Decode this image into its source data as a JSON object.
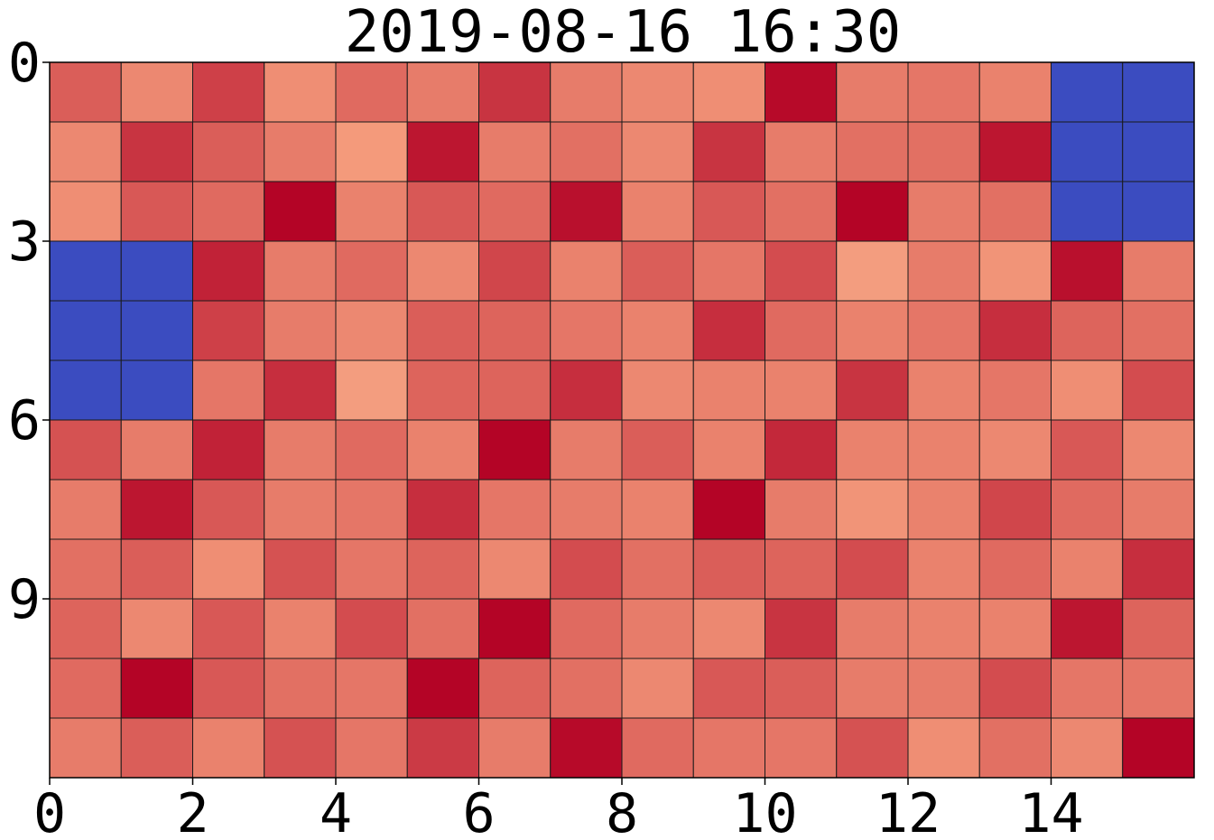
{
  "chart_data": {
    "type": "heatmap",
    "title": "2019-08-16 16:30",
    "xlabel": "",
    "ylabel": "",
    "xlim": [
      0,
      16
    ],
    "ylim": [
      12,
      0
    ],
    "x_ticks": [
      0,
      2,
      4,
      6,
      8,
      10,
      12,
      14
    ],
    "y_ticks": [
      0,
      3,
      6,
      9
    ],
    "x_tick_labels": [
      "0",
      "2",
      "4",
      "6",
      "8",
      "10",
      "12",
      "14"
    ],
    "y_tick_labels": [
      "0",
      "3",
      "6",
      "9"
    ],
    "colormap": "coolwarm",
    "color_range": [
      0,
      1
    ],
    "colors": {
      "low": "#3b4cc0",
      "high": "#b40426",
      "grid": "#1a1a1a",
      "background": "#ffffff"
    },
    "rows": 12,
    "cols": 16,
    "values": [
      [
        0.85,
        0.78,
        0.9,
        0.77,
        0.83,
        0.8,
        0.92,
        0.8,
        0.78,
        0.77,
        0.99,
        0.8,
        0.81,
        0.79,
        0.0,
        0.0
      ],
      [
        0.78,
        0.92,
        0.85,
        0.8,
        0.75,
        0.97,
        0.8,
        0.82,
        0.78,
        0.92,
        0.8,
        0.82,
        0.82,
        0.97,
        0.0,
        0.0
      ],
      [
        0.77,
        0.86,
        0.83,
        1.0,
        0.79,
        0.86,
        0.83,
        0.98,
        0.79,
        0.86,
        0.82,
        1.0,
        0.8,
        0.82,
        0.0,
        0.0
      ],
      [
        0.0,
        0.0,
        0.95,
        0.8,
        0.83,
        0.78,
        0.89,
        0.79,
        0.85,
        0.81,
        0.88,
        0.74,
        0.8,
        0.76,
        0.98,
        0.8
      ],
      [
        0.0,
        0.0,
        0.9,
        0.8,
        0.78,
        0.85,
        0.84,
        0.81,
        0.79,
        0.93,
        0.83,
        0.79,
        0.81,
        0.93,
        0.84,
        0.82
      ],
      [
        0.0,
        0.0,
        0.81,
        0.93,
        0.74,
        0.84,
        0.84,
        0.93,
        0.78,
        0.79,
        0.79,
        0.92,
        0.79,
        0.81,
        0.77,
        0.88
      ],
      [
        0.87,
        0.8,
        0.95,
        0.8,
        0.83,
        0.79,
        1.0,
        0.8,
        0.85,
        0.79,
        0.94,
        0.79,
        0.79,
        0.78,
        0.86,
        0.78
      ],
      [
        0.8,
        0.97,
        0.86,
        0.8,
        0.81,
        0.93,
        0.81,
        0.8,
        0.79,
        1.0,
        0.8,
        0.76,
        0.79,
        0.89,
        0.83,
        0.8
      ],
      [
        0.82,
        0.85,
        0.77,
        0.87,
        0.81,
        0.84,
        0.78,
        0.88,
        0.82,
        0.85,
        0.84,
        0.88,
        0.79,
        0.83,
        0.79,
        0.93
      ],
      [
        0.84,
        0.78,
        0.86,
        0.79,
        0.88,
        0.82,
        1.0,
        0.83,
        0.8,
        0.78,
        0.92,
        0.8,
        0.79,
        0.79,
        0.97,
        0.84
      ],
      [
        0.83,
        1.0,
        0.86,
        0.82,
        0.81,
        1.0,
        0.84,
        0.82,
        0.78,
        0.86,
        0.85,
        0.8,
        0.8,
        0.88,
        0.81,
        0.81
      ],
      [
        0.8,
        0.85,
        0.79,
        0.87,
        0.81,
        0.91,
        0.8,
        0.99,
        0.83,
        0.81,
        0.81,
        0.87,
        0.77,
        0.82,
        0.78,
        1.0
      ]
    ]
  }
}
